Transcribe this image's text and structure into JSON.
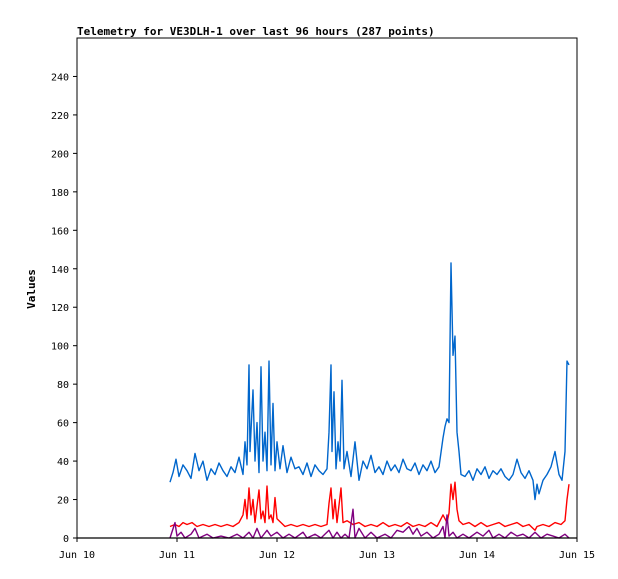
{
  "chart_data": {
    "type": "line",
    "title": "Telemetry for VE3DLH-1 over last 96 hours (287 points)",
    "xlabel": "",
    "ylabel": "Values",
    "xlim": [
      "Jun 10",
      "Jun 15"
    ],
    "ylim": [
      0,
      260
    ],
    "x_ticks": [
      "Jun 10",
      "Jun 11",
      "Jun 12",
      "Jun 13",
      "Jun 14",
      "Jun 15"
    ],
    "y_ticks": [
      0,
      20,
      40,
      60,
      80,
      100,
      120,
      140,
      160,
      180,
      200,
      220,
      240
    ],
    "grid": false,
    "legend": "none",
    "series": [
      {
        "color": "#0066cc",
        "points": [
          [
            10.93,
            29
          ],
          [
            10.96,
            34
          ],
          [
            10.99,
            41
          ],
          [
            11.02,
            32
          ],
          [
            11.06,
            38
          ],
          [
            11.1,
            35
          ],
          [
            11.14,
            31
          ],
          [
            11.18,
            44
          ],
          [
            11.22,
            35
          ],
          [
            11.26,
            40
          ],
          [
            11.3,
            30
          ],
          [
            11.34,
            36
          ],
          [
            11.38,
            33
          ],
          [
            11.42,
            39
          ],
          [
            11.46,
            35
          ],
          [
            11.5,
            32
          ],
          [
            11.54,
            37
          ],
          [
            11.58,
            34
          ],
          [
            11.62,
            42
          ],
          [
            11.66,
            33
          ],
          [
            11.68,
            50
          ],
          [
            11.7,
            38
          ],
          [
            11.72,
            90
          ],
          [
            11.73,
            45
          ],
          [
            11.76,
            77
          ],
          [
            11.78,
            40
          ],
          [
            11.8,
            60
          ],
          [
            11.82,
            34
          ],
          [
            11.84,
            89
          ],
          [
            11.86,
            40
          ],
          [
            11.88,
            55
          ],
          [
            11.9,
            35
          ],
          [
            11.92,
            92
          ],
          [
            11.94,
            38
          ],
          [
            11.96,
            70
          ],
          [
            11.98,
            35
          ],
          [
            12.0,
            50
          ],
          [
            12.03,
            36
          ],
          [
            12.06,
            48
          ],
          [
            12.1,
            34
          ],
          [
            12.14,
            42
          ],
          [
            12.18,
            36
          ],
          [
            12.22,
            37
          ],
          [
            12.26,
            33
          ],
          [
            12.3,
            39
          ],
          [
            12.34,
            32
          ],
          [
            12.38,
            38
          ],
          [
            12.42,
            35
          ],
          [
            12.46,
            33
          ],
          [
            12.5,
            36
          ],
          [
            12.52,
            55
          ],
          [
            12.54,
            90
          ],
          [
            12.55,
            45
          ],
          [
            12.57,
            76
          ],
          [
            12.59,
            36
          ],
          [
            12.61,
            50
          ],
          [
            12.63,
            40
          ],
          [
            12.65,
            82
          ],
          [
            12.67,
            36
          ],
          [
            12.7,
            45
          ],
          [
            12.74,
            32
          ],
          [
            12.78,
            50
          ],
          [
            12.82,
            30
          ],
          [
            12.86,
            40
          ],
          [
            12.9,
            36
          ],
          [
            12.94,
            43
          ],
          [
            12.98,
            34
          ],
          [
            13.02,
            37
          ],
          [
            13.06,
            33
          ],
          [
            13.1,
            40
          ],
          [
            13.14,
            35
          ],
          [
            13.18,
            38
          ],
          [
            13.22,
            34
          ],
          [
            13.26,
            41
          ],
          [
            13.3,
            36
          ],
          [
            13.34,
            35
          ],
          [
            13.38,
            39
          ],
          [
            13.42,
            33
          ],
          [
            13.46,
            38
          ],
          [
            13.5,
            35
          ],
          [
            13.54,
            40
          ],
          [
            13.58,
            34
          ],
          [
            13.62,
            37
          ],
          [
            13.66,
            52
          ],
          [
            13.68,
            58
          ],
          [
            13.7,
            62
          ],
          [
            13.72,
            60
          ],
          [
            13.74,
            143
          ],
          [
            13.76,
            95
          ],
          [
            13.78,
            105
          ],
          [
            13.8,
            55
          ],
          [
            13.82,
            45
          ],
          [
            13.84,
            33
          ],
          [
            13.88,
            32
          ],
          [
            13.92,
            35
          ],
          [
            13.96,
            30
          ],
          [
            14.0,
            36
          ],
          [
            14.04,
            33
          ],
          [
            14.08,
            37
          ],
          [
            14.12,
            31
          ],
          [
            14.16,
            35
          ],
          [
            14.2,
            33
          ],
          [
            14.24,
            36
          ],
          [
            14.28,
            32
          ],
          [
            14.32,
            30
          ],
          [
            14.36,
            33
          ],
          [
            14.4,
            41
          ],
          [
            14.44,
            34
          ],
          [
            14.48,
            31
          ],
          [
            14.52,
            35
          ],
          [
            14.56,
            30
          ],
          [
            14.58,
            20
          ],
          [
            14.6,
            28
          ],
          [
            14.62,
            23
          ],
          [
            14.66,
            30
          ],
          [
            14.7,
            33
          ],
          [
            14.74,
            37
          ],
          [
            14.78,
            45
          ],
          [
            14.82,
            33
          ],
          [
            14.85,
            30
          ],
          [
            14.88,
            45
          ],
          [
            14.9,
            92
          ],
          [
            14.92,
            90
          ]
        ]
      },
      {
        "color": "#ff0000",
        "points": [
          [
            10.93,
            6
          ],
          [
            10.98,
            7
          ],
          [
            11.02,
            6
          ],
          [
            11.06,
            8
          ],
          [
            11.1,
            7
          ],
          [
            11.15,
            8
          ],
          [
            11.2,
            6
          ],
          [
            11.26,
            7
          ],
          [
            11.32,
            6
          ],
          [
            11.38,
            7
          ],
          [
            11.44,
            6
          ],
          [
            11.5,
            7
          ],
          [
            11.56,
            6
          ],
          [
            11.62,
            8
          ],
          [
            11.66,
            12
          ],
          [
            11.68,
            20
          ],
          [
            11.7,
            10
          ],
          [
            11.72,
            26
          ],
          [
            11.74,
            12
          ],
          [
            11.76,
            20
          ],
          [
            11.78,
            8
          ],
          [
            11.82,
            25
          ],
          [
            11.84,
            10
          ],
          [
            11.86,
            14
          ],
          [
            11.88,
            8
          ],
          [
            11.9,
            27
          ],
          [
            11.92,
            10
          ],
          [
            11.94,
            12
          ],
          [
            11.96,
            8
          ],
          [
            11.98,
            21
          ],
          [
            12.0,
            10
          ],
          [
            12.04,
            8
          ],
          [
            12.08,
            6
          ],
          [
            12.14,
            7
          ],
          [
            12.2,
            6
          ],
          [
            12.26,
            7
          ],
          [
            12.32,
            6
          ],
          [
            12.38,
            7
          ],
          [
            12.44,
            6
          ],
          [
            12.5,
            7
          ],
          [
            12.52,
            18
          ],
          [
            12.54,
            26
          ],
          [
            12.56,
            10
          ],
          [
            12.58,
            20
          ],
          [
            12.6,
            8
          ],
          [
            12.64,
            26
          ],
          [
            12.66,
            8
          ],
          [
            12.7,
            9
          ],
          [
            12.76,
            7
          ],
          [
            12.82,
            8
          ],
          [
            12.88,
            6
          ],
          [
            12.94,
            7
          ],
          [
            13.0,
            6
          ],
          [
            13.06,
            8
          ],
          [
            13.12,
            6
          ],
          [
            13.18,
            7
          ],
          [
            13.24,
            6
          ],
          [
            13.3,
            8
          ],
          [
            13.36,
            6
          ],
          [
            13.42,
            7
          ],
          [
            13.48,
            6
          ],
          [
            13.54,
            8
          ],
          [
            13.6,
            6
          ],
          [
            13.64,
            10
          ],
          [
            13.66,
            12
          ],
          [
            13.7,
            8
          ],
          [
            13.72,
            13
          ],
          [
            13.74,
            28
          ],
          [
            13.76,
            20
          ],
          [
            13.78,
            29
          ],
          [
            13.8,
            15
          ],
          [
            13.82,
            9
          ],
          [
            13.86,
            7
          ],
          [
            13.92,
            8
          ],
          [
            13.98,
            6
          ],
          [
            14.04,
            8
          ],
          [
            14.1,
            6
          ],
          [
            14.16,
            7
          ],
          [
            14.22,
            8
          ],
          [
            14.28,
            6
          ],
          [
            14.34,
            7
          ],
          [
            14.4,
            8
          ],
          [
            14.46,
            6
          ],
          [
            14.52,
            7
          ],
          [
            14.56,
            5
          ],
          [
            14.58,
            4
          ],
          [
            14.6,
            6
          ],
          [
            14.66,
            7
          ],
          [
            14.72,
            6
          ],
          [
            14.78,
            8
          ],
          [
            14.84,
            7
          ],
          [
            14.88,
            9
          ],
          [
            14.9,
            20
          ],
          [
            14.92,
            28
          ]
        ]
      },
      {
        "color": "#800080",
        "points": [
          [
            10.93,
            0
          ],
          [
            10.98,
            8
          ],
          [
            11.0,
            1
          ],
          [
            11.04,
            3
          ],
          [
            11.08,
            0
          ],
          [
            11.14,
            2
          ],
          [
            11.18,
            5
          ],
          [
            11.22,
            0
          ],
          [
            11.3,
            2
          ],
          [
            11.36,
            0
          ],
          [
            11.44,
            1
          ],
          [
            11.52,
            0
          ],
          [
            11.6,
            2
          ],
          [
            11.66,
            0
          ],
          [
            11.72,
            3
          ],
          [
            11.76,
            0
          ],
          [
            11.8,
            5
          ],
          [
            11.84,
            0
          ],
          [
            11.9,
            4
          ],
          [
            11.94,
            1
          ],
          [
            12.0,
            3
          ],
          [
            12.06,
            0
          ],
          [
            12.12,
            2
          ],
          [
            12.18,
            0
          ],
          [
            12.26,
            3
          ],
          [
            12.3,
            0
          ],
          [
            12.38,
            2
          ],
          [
            12.44,
            0
          ],
          [
            12.52,
            4
          ],
          [
            12.56,
            0
          ],
          [
            12.6,
            3
          ],
          [
            12.64,
            0
          ],
          [
            12.68,
            2
          ],
          [
            12.72,
            0
          ],
          [
            12.76,
            15
          ],
          [
            12.78,
            0
          ],
          [
            12.82,
            5
          ],
          [
            12.88,
            0
          ],
          [
            12.94,
            3
          ],
          [
            13.0,
            0
          ],
          [
            13.08,
            2
          ],
          [
            13.14,
            0
          ],
          [
            13.2,
            4
          ],
          [
            13.26,
            3
          ],
          [
            13.32,
            6
          ],
          [
            13.36,
            2
          ],
          [
            13.4,
            5
          ],
          [
            13.44,
            1
          ],
          [
            13.5,
            3
          ],
          [
            13.56,
            0
          ],
          [
            13.62,
            2
          ],
          [
            13.66,
            6
          ],
          [
            13.68,
            0
          ],
          [
            13.7,
            12
          ],
          [
            13.72,
            1
          ],
          [
            13.76,
            3
          ],
          [
            13.8,
            0
          ],
          [
            13.86,
            2
          ],
          [
            13.92,
            0
          ],
          [
            14.0,
            3
          ],
          [
            14.06,
            1
          ],
          [
            14.12,
            4
          ],
          [
            14.16,
            0
          ],
          [
            14.22,
            2
          ],
          [
            14.28,
            0
          ],
          [
            14.34,
            3
          ],
          [
            14.4,
            1
          ],
          [
            14.46,
            2
          ],
          [
            14.52,
            0
          ],
          [
            14.58,
            3
          ],
          [
            14.64,
            0
          ],
          [
            14.7,
            2
          ],
          [
            14.76,
            1
          ],
          [
            14.82,
            0
          ],
          [
            14.88,
            2
          ],
          [
            14.92,
            0
          ]
        ]
      }
    ]
  }
}
